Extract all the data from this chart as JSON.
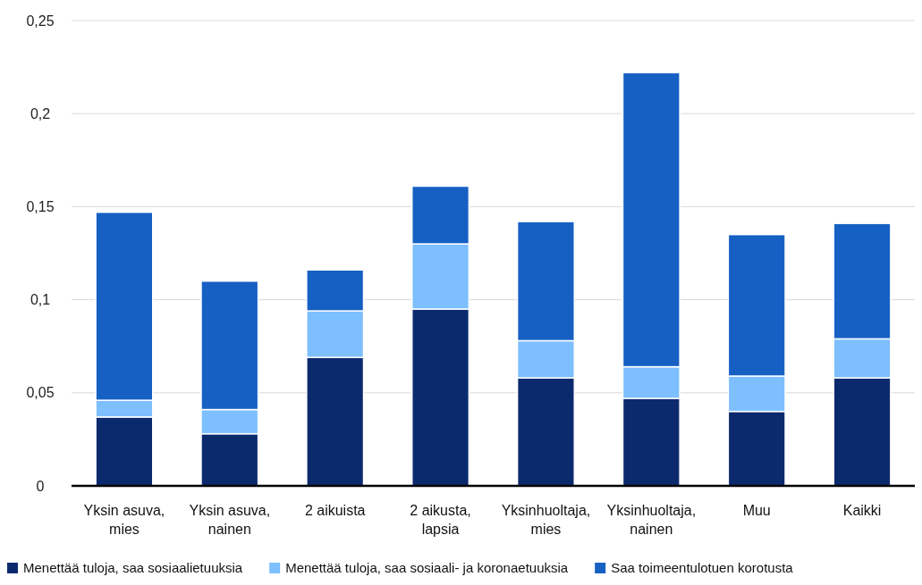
{
  "chart_data": {
    "type": "bar",
    "stacked": true,
    "categories": [
      "Yksin asuva, mies",
      "Yksin asuva, nainen",
      "2 aikuista",
      "2 aikusta, lapsia",
      "Yksinhuoltaja, mies",
      "Yksinhuoltaja, nainen",
      "Muu",
      "Kaikki"
    ],
    "series": [
      {
        "name": "Menettää tuloja, saa sosiaalietuuksia",
        "color": "#0b2a6e",
        "values": [
          0.037,
          0.028,
          0.069,
          0.095,
          0.058,
          0.047,
          0.04,
          0.058
        ]
      },
      {
        "name": "Menettää tuloja, saa sosiaali- ja koronaetuuksia",
        "color": "#7dbfff",
        "values": [
          0.009,
          0.013,
          0.025,
          0.035,
          0.02,
          0.017,
          0.019,
          0.021
        ]
      },
      {
        "name": "Saa toimeentulotuen korotusta",
        "color": "#1660c4",
        "values": [
          0.101,
          0.069,
          0.022,
          0.031,
          0.064,
          0.158,
          0.076,
          0.062
        ]
      }
    ],
    "ylim": [
      0,
      0.25
    ],
    "yticks": [
      0,
      {
        "value": 0.05,
        "label": "0,05"
      },
      {
        "value": 0.1,
        "label": "0,1"
      },
      {
        "value": 0.15,
        "label": "0,15"
      },
      {
        "value": 0.2,
        "label": "0,2"
      },
      {
        "value": 0.25,
        "label": "0,25"
      }
    ],
    "grid": "y",
    "legend": "bottom"
  }
}
